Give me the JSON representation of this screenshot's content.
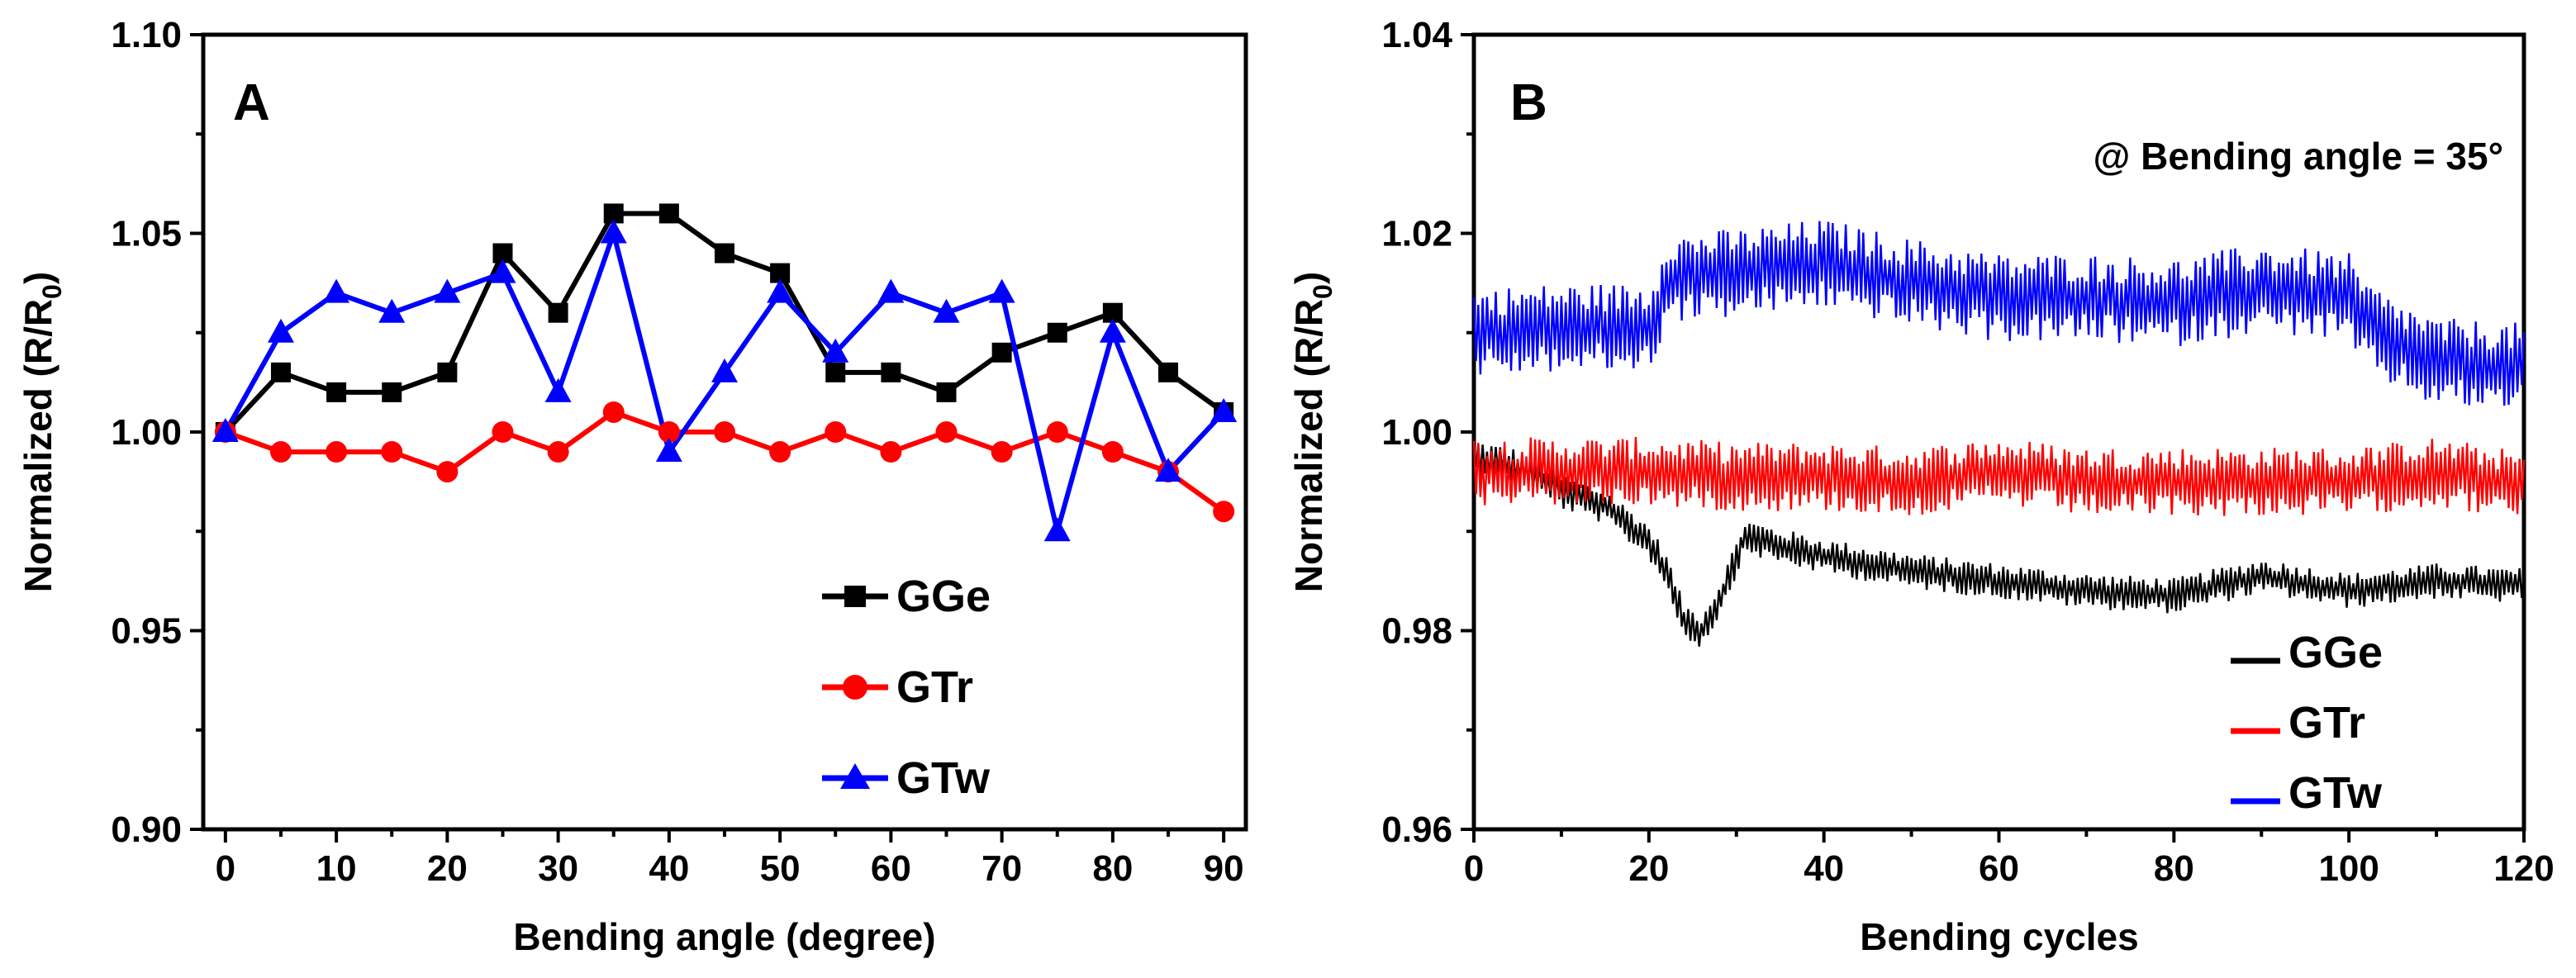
{
  "chart_data": [
    {
      "type": "line",
      "panel_label": "A",
      "xlabel": "Bending angle (degree)",
      "ylabel_main": "Normalized (R/R",
      "ylabel_sub": "0",
      "ylabel_close": ")",
      "xlim": [
        -2,
        92
      ],
      "ylim": [
        0.9,
        1.1
      ],
      "xticks": [
        0,
        10,
        20,
        30,
        40,
        50,
        60,
        70,
        80,
        90
      ],
      "xtick_labels": [
        "0",
        "10",
        "20",
        "30",
        "40",
        "50",
        "60",
        "70",
        "80",
        "90"
      ],
      "yticks": [
        0.9,
        0.95,
        1.0,
        1.05,
        1.1
      ],
      "ytick_labels": [
        "0.90",
        "0.95",
        "1.00",
        "1.05",
        "1.10"
      ],
      "legend_position": "bottom-right",
      "x": [
        0,
        5,
        10,
        15,
        20,
        25,
        30,
        35,
        40,
        45,
        50,
        55,
        60,
        65,
        70,
        75,
        80,
        85,
        90
      ],
      "series": [
        {
          "name": "GGe",
          "color": "#000000",
          "marker": "square",
          "values": [
            1.0,
            1.015,
            1.01,
            1.01,
            1.015,
            1.045,
            1.03,
            1.055,
            1.055,
            1.045,
            1.04,
            1.015,
            1.015,
            1.01,
            1.02,
            1.025,
            1.03,
            1.015,
            1.005
          ]
        },
        {
          "name": "GTr",
          "color": "#ff0000",
          "marker": "circle",
          "values": [
            1.0,
            0.995,
            0.995,
            0.995,
            0.99,
            1.0,
            0.995,
            1.005,
            1.0,
            1.0,
            0.995,
            1.0,
            0.995,
            1.0,
            0.995,
            1.0,
            0.995,
            0.99,
            0.98
          ]
        },
        {
          "name": "GTw",
          "color": "#0000ff",
          "marker": "triangle",
          "values": [
            1.0,
            1.025,
            1.035,
            1.03,
            1.035,
            1.04,
            1.01,
            1.05,
            0.995,
            1.015,
            1.035,
            1.02,
            1.035,
            1.03,
            1.035,
            0.975,
            1.025,
            0.99,
            1.005
          ]
        }
      ]
    },
    {
      "type": "line",
      "panel_label": "B",
      "annotation": "@ Bending angle = 35°",
      "xlabel": "Bending cycles",
      "ylabel_main": "Normalized (R/R",
      "ylabel_sub": "0",
      "ylabel_close": ")",
      "xlim": [
        0,
        120
      ],
      "ylim": [
        0.96,
        1.04
      ],
      "xticks": [
        0,
        20,
        40,
        60,
        80,
        100,
        120
      ],
      "xtick_labels": [
        "0",
        "20",
        "40",
        "60",
        "80",
        "100",
        "120"
      ],
      "yticks": [
        0.96,
        0.98,
        1.0,
        1.02,
        1.04
      ],
      "ytick_labels": [
        "0.96",
        "0.98",
        "1.00",
        "1.02",
        "1.04"
      ],
      "legend_position": "bottom-right",
      "sample_step": 0.25,
      "series": [
        {
          "name": "GGe",
          "color": "#000000",
          "trend_x": [
            0,
            5,
            10,
            15,
            20,
            22,
            24,
            26,
            28,
            31,
            35,
            40,
            50,
            60,
            70,
            80,
            90,
            100,
            110,
            120
          ],
          "trend_y": [
            0.9975,
            0.9965,
            0.994,
            0.9925,
            0.989,
            0.986,
            0.981,
            0.98,
            0.983,
            0.9895,
            0.9885,
            0.9875,
            0.986,
            0.985,
            0.984,
            0.9835,
            0.9855,
            0.984,
            0.985,
            0.9845
          ],
          "noise_amplitude": 0.0018
        },
        {
          "name": "GTr",
          "color": "#ff0000",
          "trend_x": [
            0,
            10,
            20,
            30,
            40,
            50,
            60,
            70,
            80,
            90,
            100,
            110,
            120
          ],
          "trend_y": [
            0.996,
            0.996,
            0.996,
            0.9955,
            0.9955,
            0.995,
            0.996,
            0.995,
            0.995,
            0.995,
            0.995,
            0.996,
            0.9945
          ],
          "noise_amplitude": 0.0035
        },
        {
          "name": "GTw",
          "color": "#0000ff",
          "trend_x": [
            0,
            10,
            20,
            21,
            22,
            30,
            40,
            50,
            60,
            70,
            80,
            90,
            100,
            101,
            105,
            110,
            120
          ],
          "trend_y": [
            1.01,
            1.0105,
            1.0105,
            1.0125,
            1.0155,
            1.016,
            1.017,
            1.015,
            1.0135,
            1.0135,
            1.013,
            1.0145,
            1.0135,
            1.0115,
            1.009,
            1.007,
            1.0065
          ],
          "noise_amplitude": 0.0045
        }
      ]
    }
  ]
}
